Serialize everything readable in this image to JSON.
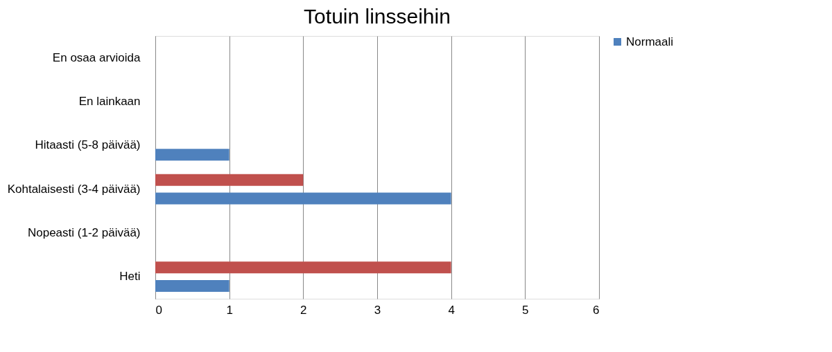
{
  "chart_data": {
    "type": "bar",
    "orientation": "horizontal",
    "title": "Totuin linsseihin",
    "categories": [
      "En osaa arvioida",
      "En lainkaan",
      "Hitaasti (5-8 päivää)",
      "Kohtalaisesti (3-4 päivää)",
      "Nopeasti (1-2 päivää)",
      "Heti"
    ],
    "series": [
      {
        "color": "#c0504d",
        "values": [
          0,
          0,
          0,
          2,
          0,
          4
        ]
      },
      {
        "name": "Normaali",
        "color": "#4f81bd",
        "values": [
          0,
          0,
          1,
          4,
          0,
          1
        ]
      }
    ],
    "xlim": [
      0,
      6
    ],
    "xticks": [
      0,
      1,
      2,
      3,
      4,
      5,
      6
    ],
    "grid": "x",
    "legend": "right"
  }
}
